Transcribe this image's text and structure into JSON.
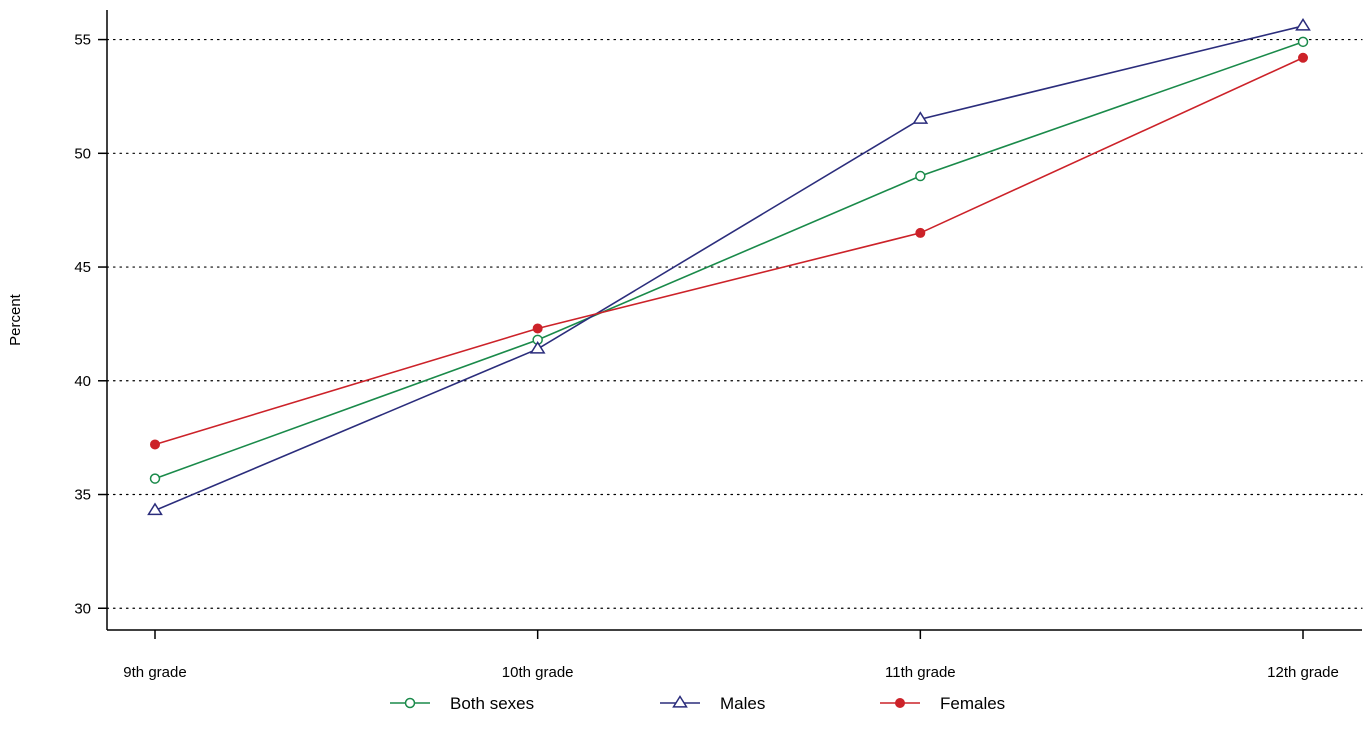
{
  "chart_data": {
    "type": "line",
    "title": "",
    "xlabel": "",
    "ylabel": "Percent",
    "categories": [
      "9th grade",
      "10th grade",
      "11th grade",
      "12th grade"
    ],
    "ylim": [
      29.0,
      56.3
    ],
    "yticks": [
      30,
      35,
      40,
      45,
      50,
      55
    ],
    "grid": "horizontal dotted",
    "legend_position": "bottom",
    "series": [
      {
        "name": "Both sexes",
        "color": "#1a8a4a",
        "marker": "open-circle",
        "values": [
          35.7,
          41.8,
          49.0,
          54.9
        ]
      },
      {
        "name": "Males",
        "color": "#2b2d7c",
        "marker": "open-triangle",
        "values": [
          34.3,
          41.4,
          51.5,
          55.6
        ]
      },
      {
        "name": "Females",
        "color": "#cc2229",
        "marker": "filled-circle",
        "values": [
          37.2,
          42.3,
          46.5,
          54.2
        ]
      }
    ]
  }
}
